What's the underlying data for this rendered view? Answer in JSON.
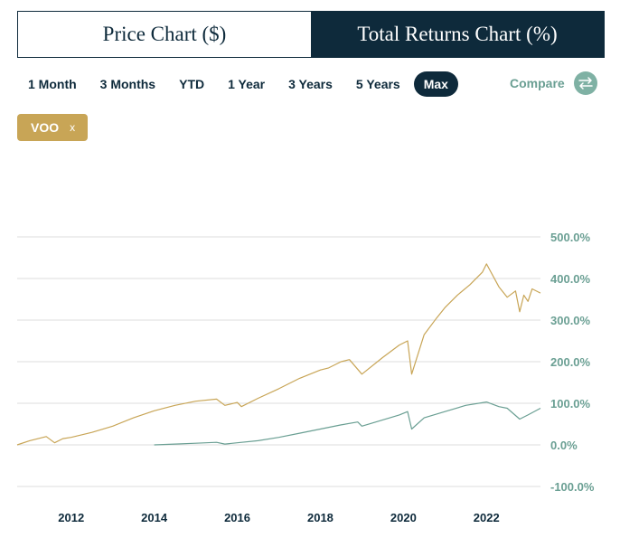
{
  "tabs": [
    {
      "label": "Price Chart ($)",
      "active": false
    },
    {
      "label": "Total Returns Chart (%)",
      "active": true
    }
  ],
  "ranges": [
    "1 Month",
    "3 Months",
    "YTD",
    "1 Year",
    "3 Years",
    "5 Years",
    "Max"
  ],
  "active_range": "Max",
  "compare": {
    "label": "Compare",
    "icon": "swap-arrows-icon"
  },
  "ticker_chip": {
    "label": "VOO",
    "close": "x"
  },
  "colors": {
    "navy": "#0e2a3b",
    "gold": "#c8a556",
    "teal": "#6a9f93",
    "grid": "#dcdcdc"
  },
  "chart_data": {
    "type": "line",
    "title": "",
    "xlabel": "",
    "ylabel": "",
    "x_range": [
      2010.7,
      2023.3
    ],
    "ylim": [
      -100,
      500
    ],
    "y_ticks": [
      500,
      400,
      300,
      200,
      100,
      0,
      -100
    ],
    "y_tick_labels": [
      "500.0%",
      "400.0%",
      "300.0%",
      "200.0%",
      "100.0%",
      "0.0%",
      "-100.0%"
    ],
    "x_ticks": [
      2012,
      2014,
      2016,
      2018,
      2020,
      2022
    ],
    "x_tick_labels": [
      "2012",
      "2014",
      "2016",
      "2018",
      "2020",
      "2022"
    ],
    "grid": "horizontal",
    "series": [
      {
        "color": "#c8a556",
        "x": [
          2010.7,
          2011.0,
          2011.4,
          2011.6,
          2011.8,
          2012.0,
          2012.5,
          2013.0,
          2013.5,
          2014.0,
          2014.5,
          2015.0,
          2015.5,
          2015.7,
          2016.0,
          2016.1,
          2016.5,
          2017.0,
          2017.5,
          2018.0,
          2018.2,
          2018.5,
          2018.7,
          2019.0,
          2019.5,
          2019.9,
          2020.1,
          2020.2,
          2020.5,
          2020.8,
          2021.0,
          2021.3,
          2021.6,
          2021.9,
          2022.0,
          2022.3,
          2022.5,
          2022.7,
          2022.8,
          2022.9,
          2023.0,
          2023.1,
          2023.3
        ],
        "y": [
          0,
          10,
          20,
          5,
          15,
          18,
          30,
          45,
          65,
          82,
          95,
          105,
          110,
          95,
          102,
          92,
          112,
          135,
          160,
          180,
          185,
          200,
          205,
          170,
          210,
          240,
          250,
          170,
          265,
          305,
          330,
          360,
          385,
          415,
          435,
          380,
          355,
          370,
          320,
          360,
          345,
          375,
          365
        ]
      },
      {
        "color": "#6a9f93",
        "x": [
          2014.0,
          2014.5,
          2015.0,
          2015.5,
          2015.7,
          2016.0,
          2016.5,
          2017.0,
          2017.5,
          2018.0,
          2018.5,
          2018.9,
          2019.0,
          2019.5,
          2019.9,
          2020.1,
          2020.2,
          2020.5,
          2021.0,
          2021.5,
          2022.0,
          2022.3,
          2022.5,
          2022.8,
          2023.0,
          2023.3
        ],
        "y": [
          0,
          2,
          4,
          6,
          2,
          5,
          10,
          18,
          28,
          38,
          48,
          55,
          45,
          60,
          72,
          80,
          38,
          65,
          80,
          95,
          103,
          92,
          88,
          62,
          72,
          88
        ]
      }
    ]
  }
}
